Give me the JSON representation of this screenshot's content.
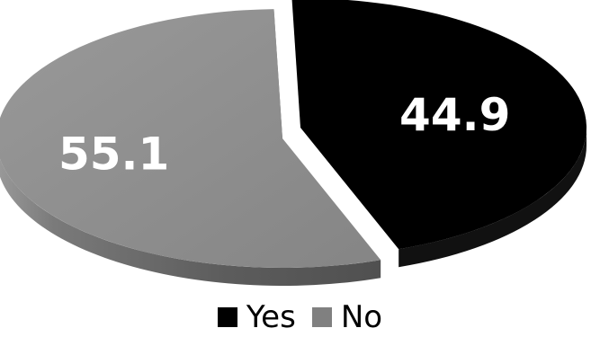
{
  "chart_data": {
    "type": "pie",
    "style": "3d-exploded",
    "categories": [
      "Yes",
      "No"
    ],
    "values": [
      44.9,
      55.1
    ],
    "data_labels": [
      "44.9",
      "55.1"
    ],
    "colors": {
      "Yes": {
        "top": "#000000",
        "side": "#111111"
      },
      "No": {
        "top": "#8c8c8c",
        "side": "#6e6e6e"
      }
    },
    "legend": {
      "placement": "bottom",
      "items": [
        {
          "label": "Yes",
          "color": "#000000"
        },
        {
          "label": "No",
          "color": "#808080"
        }
      ]
    },
    "title": ""
  }
}
